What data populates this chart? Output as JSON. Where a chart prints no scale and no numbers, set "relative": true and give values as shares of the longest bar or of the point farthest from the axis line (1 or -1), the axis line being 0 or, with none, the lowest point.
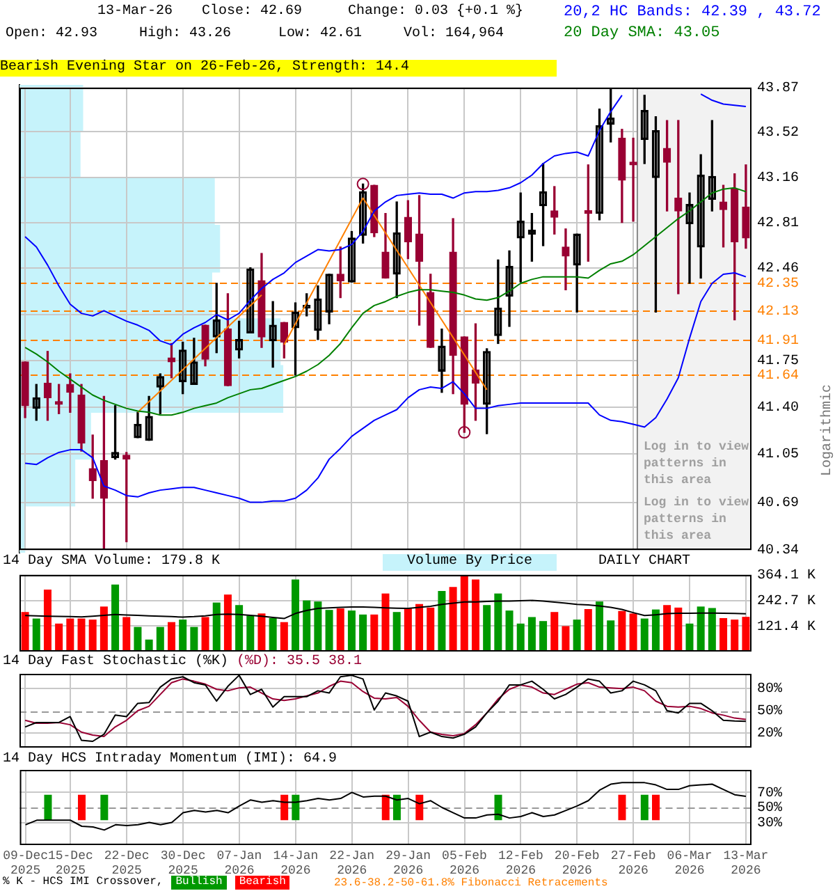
{
  "chart_data": [
    {
      "type": "candlestick",
      "title": "Bearish Evening Star on 26-Feb-26, Strength: 14.4",
      "ylabel": "Logarithmic",
      "annotations": [
        "13-Mar-26",
        "Close: 42.69",
        "Change: 0.03 {+0.1 %}",
        "Open: 42.93",
        "High: 43.26",
        "Low: 42.61",
        "Vol: 164,964",
        "Log in to view patterns in this area"
      ],
      "categories": [
        "09-Dec 2025",
        null,
        null,
        null,
        "15-Dec 2025",
        null,
        null,
        null,
        null,
        "22-Dec 2025",
        null,
        null,
        null,
        null,
        "30-Dec 2025",
        null,
        null,
        null,
        null,
        "07-Jan 2026",
        null,
        null,
        null,
        null,
        "14-Jan 2026",
        null,
        null,
        null,
        null,
        "22-Jan 2026",
        null,
        null,
        null,
        null,
        "29-Jan 2026",
        null,
        null,
        null,
        null,
        "05-Feb 2026",
        null,
        null,
        null,
        null,
        "12-Feb 2026",
        null,
        null,
        null,
        null,
        "20-Feb 2026",
        null,
        null,
        null,
        null,
        "27-Feb 2026",
        null,
        null,
        null,
        null,
        "06-Mar 2026",
        null,
        null,
        null,
        null,
        "13-Mar 2026"
      ],
      "colors": [
        "#990033",
        "#000000",
        "#990033",
        "#990033",
        "#990033",
        "#990033",
        "#990033",
        "#990033",
        "#000000",
        "#990033",
        "#000000",
        "#000000",
        "#000000",
        "#990033",
        "#000000",
        "#000000",
        "#990033",
        "#000000",
        "#990033",
        "#000000",
        "#000000",
        "#990033",
        "#000000",
        "#990033",
        "#000000",
        "#000000",
        "#000000",
        "#000000",
        "#990033",
        "#000000",
        "#000000",
        "#990033",
        "#990033",
        "#000000",
        "#990033",
        "#990033",
        "#990033",
        "#000000",
        "#990033",
        "#990033",
        "#990033",
        "#000000",
        "#000000",
        "#000000",
        "#000000",
        "#000000",
        "#000000",
        "#990033",
        "#990033",
        "#000000",
        "#990033",
        "#000000",
        "#000000",
        "#990033",
        "#990033",
        "#000000",
        "#000000",
        "#990033",
        "#990033",
        "#000000",
        "#000000",
        "#000000",
        "#990033",
        "#990033",
        "#990033"
      ],
      "ohlc": [
        [
          41.74,
          41.74,
          41.32,
          41.41
        ],
        [
          41.39,
          41.57,
          41.3,
          41.47
        ],
        [
          41.58,
          41.82,
          41.3,
          41.47
        ],
        [
          41.43,
          41.57,
          41.35,
          41.42
        ],
        [
          41.57,
          41.65,
          41.36,
          41.51
        ],
        [
          41.49,
          41.57,
          41.07,
          41.13
        ],
        [
          40.94,
          41.19,
          40.72,
          40.85
        ],
        [
          41.0,
          41.48,
          40.35,
          40.72
        ],
        [
          41.02,
          41.41,
          41.01,
          41.06
        ],
        [
          41.04,
          41.06,
          40.4,
          41.01
        ],
        [
          41.17,
          41.36,
          41.17,
          41.27
        ],
        [
          41.15,
          41.48,
          41.15,
          41.33
        ],
        [
          41.55,
          41.65,
          41.35,
          41.63
        ],
        [
          41.77,
          41.88,
          41.62,
          41.74
        ],
        [
          41.59,
          41.89,
          41.5,
          41.83
        ],
        [
          41.57,
          41.92,
          41.57,
          41.74
        ],
        [
          42.02,
          42.02,
          41.71,
          41.76
        ],
        [
          41.93,
          42.34,
          41.81,
          42.06
        ],
        [
          41.99,
          42.26,
          41.56,
          41.56
        ],
        [
          41.83,
          42.05,
          41.77,
          41.91
        ],
        [
          41.96,
          42.46,
          41.96,
          42.45
        ],
        [
          42.36,
          42.57,
          41.85,
          41.93
        ],
        [
          41.9,
          42.2,
          41.7,
          42.02
        ],
        [
          42.04,
          42.04,
          41.77,
          41.89
        ],
        [
          42.0,
          42.19,
          41.64,
          42.12
        ],
        [
          42.15,
          42.26,
          42.09,
          42.17
        ],
        [
          41.98,
          42.32,
          41.91,
          42.22
        ],
        [
          42.12,
          42.41,
          42.03,
          42.41
        ],
        [
          42.41,
          42.62,
          42.23,
          42.36
        ],
        [
          42.35,
          42.74,
          42.35,
          42.69
        ],
        [
          42.71,
          43.11,
          42.65,
          43.05
        ],
        [
          43.1,
          43.1,
          42.7,
          42.73
        ],
        [
          42.58,
          42.88,
          42.38,
          42.38
        ],
        [
          42.41,
          42.97,
          42.23,
          42.73
        ],
        [
          42.85,
          42.98,
          42.53,
          42.66
        ],
        [
          42.72,
          43.02,
          42.02,
          42.51
        ],
        [
          42.27,
          42.41,
          41.85,
          41.85
        ],
        [
          41.67,
          41.99,
          41.51,
          41.86
        ],
        [
          42.58,
          42.84,
          41.5,
          41.79
        ],
        [
          41.93,
          41.93,
          41.21,
          41.42
        ],
        [
          41.68,
          42.03,
          41.3,
          41.58
        ],
        [
          41.42,
          41.84,
          41.2,
          41.82
        ],
        [
          41.94,
          42.52,
          41.88,
          42.15
        ],
        [
          42.24,
          42.59,
          42.01,
          42.47
        ],
        [
          42.69,
          43.04,
          42.35,
          42.82
        ],
        [
          42.72,
          42.88,
          42.51,
          42.75
        ],
        [
          42.94,
          43.27,
          42.63,
          43.05
        ],
        [
          42.9,
          43.09,
          42.72,
          42.85
        ],
        [
          42.62,
          42.76,
          42.29,
          42.55
        ],
        [
          42.48,
          42.72,
          42.12,
          42.72
        ],
        [
          42.9,
          43.26,
          42.51,
          42.88
        ],
        [
          42.88,
          43.7,
          42.83,
          43.57
        ],
        [
          43.58,
          43.87,
          43.44,
          43.63
        ],
        [
          43.47,
          43.54,
          42.81,
          43.14
        ],
        [
          43.27,
          43.47,
          42.82,
          43.26
        ],
        [
          43.46,
          43.81,
          43.27,
          43.69
        ],
        [
          43.16,
          43.64,
          42.12,
          43.53
        ],
        [
          43.39,
          43.61,
          42.9,
          43.28
        ],
        [
          43.0,
          43.61,
          42.26,
          42.9
        ],
        [
          42.8,
          43.04,
          42.34,
          42.95
        ],
        [
          42.62,
          43.34,
          42.38,
          43.18
        ],
        [
          42.99,
          43.61,
          42.9,
          43.17
        ],
        [
          42.97,
          43.1,
          42.62,
          42.91
        ],
        [
          43.07,
          43.19,
          42.06,
          42.66
        ],
        [
          42.93,
          43.26,
          42.61,
          42.69
        ]
      ],
      "series": [
        {
          "type": "line",
          "name": "20,2 HC Bands: 42.39 , 43.72",
          "color": "#0000ff",
          "values": [
            42.7,
            42.62,
            42.48,
            42.32,
            42.18,
            42.11,
            42.09,
            42.13,
            42.09,
            42.05,
            42.02,
            41.98,
            41.9,
            41.87,
            41.95,
            42.0,
            42.04,
            42.1,
            42.06,
            42.11,
            42.21,
            42.3,
            42.37,
            42.42,
            42.5,
            42.55,
            42.6,
            42.59,
            42.6,
            42.64,
            42.74,
            42.9,
            42.97,
            43.02,
            43.03,
            43.04,
            43.03,
            43.03,
            43.0,
            43.04,
            43.05,
            43.05,
            43.06,
            43.08,
            43.12,
            43.18,
            43.27,
            43.33,
            43.35,
            43.36,
            43.33,
            43.53,
            43.68,
            43.81,
            null,
            null,
            null,
            null,
            null,
            null,
            43.82,
            43.77,
            43.74,
            43.73,
            43.72
          ]
        },
        {
          "type": "line",
          "color": "#0000ff",
          "values": [
            40.98,
            40.97,
            41.02,
            41.06,
            41.08,
            41.08,
            41.02,
            40.81,
            40.78,
            40.74,
            40.73,
            40.76,
            40.78,
            40.79,
            40.8,
            40.8,
            40.78,
            40.76,
            40.74,
            40.72,
            40.69,
            40.69,
            40.7,
            40.7,
            40.72,
            40.78,
            40.87,
            41.01,
            41.09,
            41.18,
            41.24,
            41.3,
            41.34,
            41.38,
            41.47,
            41.53,
            41.55,
            41.54,
            41.59,
            41.5,
            41.39,
            41.39,
            41.41,
            41.42,
            41.43,
            41.43,
            41.43,
            41.43,
            41.43,
            41.43,
            41.43,
            41.34,
            41.3,
            41.29,
            41.27,
            41.25,
            41.32,
            41.46,
            41.62,
            41.92,
            42.2,
            42.34,
            42.41,
            42.42,
            42.39
          ]
        },
        {
          "type": "line",
          "name": "20 Day SMA: 43.05",
          "color": "#008000",
          "values": [
            41.85,
            41.8,
            41.74,
            41.67,
            41.61,
            41.55,
            41.49,
            41.45,
            41.42,
            41.39,
            41.37,
            41.36,
            41.34,
            41.34,
            41.36,
            41.39,
            41.41,
            41.43,
            41.47,
            41.5,
            41.53,
            41.54,
            41.57,
            41.6,
            41.63,
            41.67,
            41.72,
            41.79,
            41.88,
            42.0,
            42.11,
            42.17,
            42.2,
            42.24,
            42.27,
            42.29,
            42.29,
            42.28,
            42.27,
            42.25,
            42.22,
            42.21,
            42.23,
            42.28,
            42.34,
            42.37,
            42.39,
            42.39,
            42.39,
            42.39,
            42.38,
            42.44,
            42.49,
            42.51,
            42.56,
            42.63,
            42.7,
            42.77,
            42.84,
            42.9,
            42.97,
            43.04,
            43.07,
            43.08,
            43.05
          ]
        },
        {
          "type": "line",
          "color": "#ff8000",
          "values": [
            null,
            null,
            null,
            null,
            null,
            null,
            null,
            null,
            null,
            null,
            41.36,
            null,
            null,
            null,
            null,
            null,
            null,
            null,
            null,
            null,
            null,
            42.25,
            null,
            null,
            null,
            null,
            null,
            null,
            null,
            null,
            null,
            null,
            null,
            null,
            null,
            null,
            null,
            null,
            null,
            null,
            null,
            null,
            null,
            null,
            null,
            null,
            null,
            null,
            null,
            null,
            null,
            null,
            null,
            null,
            null,
            null,
            null,
            null,
            null,
            null,
            null,
            null,
            null,
            null,
            null
          ]
        },
        {
          "type": "line",
          "color": "#ff8000",
          "values": [
            null,
            null,
            null,
            null,
            null,
            null,
            null,
            null,
            null,
            null,
            null,
            null,
            null,
            null,
            null,
            null,
            null,
            null,
            null,
            null,
            null,
            null,
            null,
            41.87,
            null,
            null,
            null,
            null,
            null,
            null,
            43.0,
            null,
            null,
            null,
            null,
            null,
            null,
            null,
            null,
            null,
            null,
            41.53,
            null,
            null,
            null,
            null,
            null,
            null,
            null,
            null,
            null,
            null,
            null,
            null,
            null,
            null,
            null,
            null,
            null,
            null,
            null,
            null,
            null,
            null,
            null
          ]
        },
        {
          "type": "scatter",
          "marker": "circle",
          "color": "#990033",
          "values": [
            null,
            null,
            null,
            null,
            null,
            null,
            null,
            null,
            null,
            null,
            null,
            null,
            null,
            null,
            null,
            null,
            null,
            null,
            null,
            null,
            null,
            null,
            null,
            null,
            null,
            null,
            null,
            null,
            null,
            null,
            43.11,
            null,
            null,
            null,
            null,
            null,
            null,
            null,
            null,
            41.21,
            null,
            null,
            null,
            null,
            null,
            null,
            null,
            null,
            null,
            null,
            null,
            null,
            null,
            null,
            null,
            null,
            null,
            null,
            null,
            null,
            null,
            null,
            null,
            null,
            null
          ]
        }
      ],
      "ref_lines": [
        {
          "axis": "y",
          "value": 42.35,
          "label": "42.35",
          "color": "#ff8000",
          "line_style": "dashed"
        },
        {
          "axis": "y",
          "value": 42.13,
          "label": "42.13",
          "color": "#ff8000",
          "line_style": "dashed"
        },
        {
          "axis": "y",
          "value": 41.91,
          "label": "41.91",
          "color": "#ff8000",
          "line_style": "dashed"
        },
        {
          "axis": "y",
          "value": 41.64,
          "label": "41.64",
          "color": "#ff8000",
          "line_style": "dashed"
        }
      ],
      "bands": [
        {
          "axis": "x",
          "from": "27-Feb 2026",
          "to": "13-Mar 2026",
          "label": "Log in to view patterns in this area",
          "color": "#f2f2f2"
        }
      ],
      "log": true,
      "ylim": [
        40.34,
        43.87
      ],
      "yticks": [
        40.34,
        40.69,
        41.05,
        {
          "value": 41.4,
          "label": "41.40"
        },
        41.75,
        {
          "value": 42.1,
          "label": null
        },
        42.46,
        42.81,
        43.16,
        43.52,
        43.87
      ],
      "grid": true,
      "legend": "top right",
      "tick_labels": "y"
    },
    {
      "type": "bar",
      "orientation": "horizontal",
      "relative": true,
      "color": "#c6f3fb",
      "categories": [
        null,
        null,
        null,
        null,
        null,
        null,
        null,
        null,
        null,
        null
      ],
      "values": [
        0.24,
        0.23,
        0.74,
        0.76,
        0.73,
        0.99,
        1,
        0.27,
        0.21,
        0.02
      ],
      "tick_labels": false
    },
    {
      "type": "bar",
      "title": "14 Day SMA Volume: 179.8 K",
      "annotations": [
        "Volume By Price",
        "DAILY CHART"
      ],
      "categories": [
        "09-Dec 2025",
        null,
        null,
        null,
        "15-Dec 2025",
        null,
        null,
        null,
        null,
        "22-Dec 2025",
        null,
        null,
        null,
        null,
        "30-Dec 2025",
        null,
        null,
        null,
        null,
        "07-Jan 2026",
        null,
        null,
        null,
        null,
        "14-Jan 2026",
        null,
        null,
        null,
        null,
        "22-Jan 2026",
        null,
        null,
        null,
        null,
        "29-Jan 2026",
        null,
        null,
        null,
        null,
        "05-Feb 2026",
        null,
        null,
        null,
        null,
        "12-Feb 2026",
        null,
        null,
        null,
        null,
        "20-Feb 2026",
        null,
        null,
        null,
        null,
        "27-Feb 2026",
        null,
        null,
        null,
        null,
        "06-Mar 2026",
        null,
        null,
        null,
        null,
        "13-Mar 2026"
      ],
      "series": [
        {
          "type": "bar",
          "colors": [
            "#ff0000",
            "#009900",
            "#ff0000",
            "#ff0000",
            "#ff0000",
            "#ff0000",
            "#ff0000",
            "#ff0000",
            "#009900",
            "#ff0000",
            "#009900",
            "#009900",
            "#009900",
            "#ff0000",
            "#009900",
            "#009900",
            "#ff0000",
            "#009900",
            "#ff0000",
            "#009900",
            "#009900",
            "#ff0000",
            "#009900",
            "#ff0000",
            "#009900",
            "#009900",
            "#009900",
            "#009900",
            "#ff0000",
            "#009900",
            "#009900",
            "#ff0000",
            "#ff0000",
            "#009900",
            "#ff0000",
            "#ff0000",
            "#ff0000",
            "#009900",
            "#ff0000",
            "#ff0000",
            "#ff0000",
            "#009900",
            "#009900",
            "#009900",
            "#009900",
            "#009900",
            "#009900",
            "#ff0000",
            "#ff0000",
            "#009900",
            "#ff0000",
            "#009900",
            "#009900",
            "#ff0000",
            "#ff0000",
            "#009900",
            "#009900",
            "#ff0000",
            "#ff0000",
            "#009900",
            "#009900",
            "#009900",
            "#ff0000",
            "#ff0000",
            "#ff0000"
          ],
          "values": [
            188,
            157,
            295,
            133,
            157,
            157,
            152,
            214,
            319,
            164,
            117,
            57,
            117,
            140,
            152,
            117,
            164,
            233,
            271,
            221,
            171,
            181,
            159,
            140,
            343,
            243,
            238,
            198,
            205,
            195,
            176,
            176,
            276,
            188,
            205,
            226,
            209,
            288,
            307,
            364,
            343,
            221,
            276,
            195,
            133,
            164,
            145,
            188,
            121,
            152,
            202,
            238,
            148,
            193,
            181,
            157,
            200,
            221,
            209,
            133,
            214,
            207,
            159,
            152,
            165
          ]
        },
        {
          "type": "line",
          "color": "#000000",
          "values": [
            171,
            170,
            168,
            167,
            166,
            165,
            168,
            172,
            176,
            174,
            172,
            170,
            168,
            166,
            164,
            166,
            170,
            176,
            178,
            176,
            172,
            168,
            162,
            157,
            181,
            195,
            205,
            208,
            210,
            212,
            212,
            210,
            208,
            206,
            205,
            210,
            215,
            224,
            230,
            236,
            236,
            238,
            240,
            240,
            242,
            243,
            240,
            235,
            230,
            224,
            222,
            217,
            210,
            200,
            185,
            171,
            175,
            180,
            182,
            182,
            183,
            183,
            182,
            181,
            179.8
          ]
        }
      ],
      "ylim": [
        0,
        364.1
      ],
      "yticks": [
        {
          "value": 121.4,
          "label": "121.4 K"
        },
        {
          "value": 242.7,
          "label": "242.7 K"
        },
        {
          "value": 364.1,
          "label": "364.1 K"
        }
      ],
      "grid": true,
      "tick_labels": "y"
    },
    {
      "type": "line",
      "title": "14 Day Fast Stochastic (%K)",
      "subtitle": "(%D): 35.5 38.1",
      "categories": [
        "09-Dec 2025",
        null,
        null,
        null,
        "15-Dec 2025",
        null,
        null,
        null,
        null,
        "22-Dec 2025",
        null,
        null,
        null,
        null,
        "30-Dec 2025",
        null,
        null,
        null,
        null,
        "07-Jan 2026",
        null,
        null,
        null,
        null,
        "14-Jan 2026",
        null,
        null,
        null,
        null,
        "22-Jan 2026",
        null,
        null,
        null,
        null,
        "29-Jan 2026",
        null,
        null,
        null,
        null,
        "05-Feb 2026",
        null,
        null,
        null,
        null,
        "12-Feb 2026",
        null,
        null,
        null,
        null,
        "20-Feb 2026",
        null,
        null,
        null,
        null,
        "27-Feb 2026",
        null,
        null,
        null,
        null,
        "06-Mar 2026",
        null,
        null,
        null,
        null,
        "13-Mar 2026"
      ],
      "series": [
        {
          "color": "#000000",
          "values": [
            28,
            34,
            34,
            34,
            42,
            10,
            8.5,
            18,
            44,
            42,
            60,
            61,
            82,
            93,
            96,
            88,
            85,
            63,
            83,
            98,
            72,
            79,
            55,
            69,
            69,
            69,
            77,
            74,
            96,
            98,
            93,
            51,
            74,
            70,
            63,
            15,
            21,
            15,
            13,
            18,
            28,
            47,
            63,
            85,
            85,
            90,
            79,
            66,
            72,
            82,
            93,
            90,
            74,
            77,
            90,
            85,
            77,
            50,
            47,
            60,
            60,
            50,
            37,
            36,
            35.5
          ]
        },
        {
          "color": "#990033",
          "values": [
            37,
            33,
            33,
            34,
            31,
            21,
            17,
            15,
            28,
            37,
            50,
            56,
            72,
            88,
            93,
            90,
            86,
            79,
            77,
            81,
            82,
            74,
            66,
            64,
            66,
            70,
            74,
            83,
            90,
            88,
            76,
            67,
            66,
            68,
            56,
            37,
            21,
            18,
            16,
            19,
            31,
            47,
            66,
            79,
            85,
            82,
            74,
            72,
            79,
            86,
            88,
            82,
            81,
            80,
            82,
            77,
            63,
            56,
            55,
            56,
            53,
            47,
            44,
            40,
            38.1
          ]
        }
      ],
      "ref_lines": [
        {
          "axis": "y",
          "value": 50,
          "color": "#999999",
          "line_style": "dashed"
        }
      ],
      "ylim": [
        0,
        100
      ],
      "yticks": [
        {
          "value": 20,
          "label": "20%"
        },
        {
          "value": 50,
          "label": "50%"
        },
        {
          "value": 80,
          "label": "80%"
        }
      ],
      "grid": true,
      "tick_labels": "y"
    },
    {
      "type": "line",
      "title": "14 Day HCS Intraday Momentum (IMI): 64.9",
      "annotations": [
        "23.6-38.2-50-61.8% Fibonacci Retracements"
      ],
      "categories": [
        "09-Dec 2025",
        null,
        null,
        null,
        "15-Dec 2025",
        null,
        null,
        null,
        null,
        "22-Dec 2025",
        null,
        null,
        null,
        null,
        "30-Dec 2025",
        null,
        null,
        null,
        null,
        "07-Jan 2026",
        null,
        null,
        null,
        null,
        "14-Jan 2026",
        null,
        null,
        null,
        null,
        "22-Jan 2026",
        null,
        null,
        null,
        null,
        "29-Jan 2026",
        null,
        null,
        null,
        null,
        "05-Feb 2026",
        null,
        null,
        null,
        null,
        "12-Feb 2026",
        null,
        null,
        null,
        null,
        "20-Feb 2026",
        null,
        null,
        null,
        null,
        "27-Feb 2026",
        null,
        null,
        null,
        null,
        "06-Mar 2026",
        null,
        null,
        null,
        null,
        "13-Mar 2026"
      ],
      "series": [
        {
          "type": "line",
          "color": "#000000",
          "values": [
            27,
            33,
            33,
            33,
            33,
            25,
            24,
            20,
            27,
            26,
            27,
            30,
            27,
            30,
            43,
            46,
            44,
            46,
            43,
            52,
            60,
            57,
            59,
            57,
            57,
            59,
            62,
            60,
            62,
            70,
            64,
            65,
            65,
            60,
            62,
            55,
            59,
            50,
            43,
            36,
            36,
            40,
            41,
            36,
            38,
            43,
            38,
            40,
            46,
            52,
            59,
            73,
            81,
            83,
            83,
            83,
            80,
            74,
            74,
            79,
            80,
            81,
            74,
            67,
            64.9
          ]
        },
        {
          "type": "bar",
          "name": "Bullish",
          "color": "#009900",
          "base": [
            null,
            null,
            33,
            null,
            null,
            null,
            null,
            33,
            null,
            null,
            null,
            null,
            null,
            null,
            null,
            null,
            null,
            null,
            null,
            null,
            null,
            null,
            null,
            null,
            33,
            null,
            null,
            null,
            null,
            null,
            null,
            null,
            null,
            33,
            null,
            null,
            null,
            null,
            null,
            null,
            null,
            null,
            33,
            null,
            null,
            null,
            null,
            null,
            null,
            null,
            null,
            null,
            null,
            null,
            null,
            33,
            null,
            null,
            null,
            null,
            null,
            null,
            null,
            null,
            null
          ],
          "values": [
            null,
            null,
            34,
            null,
            null,
            null,
            null,
            34,
            null,
            null,
            null,
            null,
            null,
            null,
            null,
            null,
            null,
            null,
            null,
            null,
            null,
            null,
            null,
            null,
            34,
            null,
            null,
            null,
            null,
            null,
            null,
            null,
            null,
            34,
            null,
            null,
            null,
            null,
            null,
            null,
            null,
            null,
            34,
            null,
            null,
            null,
            null,
            null,
            null,
            null,
            null,
            null,
            null,
            null,
            null,
            34,
            null,
            null,
            null,
            null,
            null,
            null,
            null,
            null,
            null
          ]
        },
        {
          "type": "bar",
          "name": "Bearish",
          "color": "#ff0000",
          "base": [
            null,
            null,
            null,
            null,
            null,
            33,
            null,
            null,
            null,
            null,
            null,
            null,
            null,
            null,
            null,
            null,
            null,
            null,
            null,
            null,
            null,
            null,
            null,
            33,
            null,
            null,
            null,
            null,
            null,
            null,
            null,
            null,
            33,
            null,
            null,
            33,
            null,
            null,
            null,
            null,
            null,
            null,
            null,
            null,
            null,
            null,
            null,
            null,
            null,
            null,
            null,
            null,
            null,
            33,
            null,
            null,
            33,
            null,
            null,
            null,
            null,
            null,
            null,
            null,
            null
          ],
          "values": [
            null,
            null,
            null,
            null,
            null,
            34,
            null,
            null,
            null,
            null,
            null,
            null,
            null,
            null,
            null,
            null,
            null,
            null,
            null,
            null,
            null,
            null,
            null,
            34,
            null,
            null,
            null,
            null,
            null,
            null,
            null,
            null,
            34,
            null,
            null,
            34,
            null,
            null,
            null,
            null,
            null,
            null,
            null,
            null,
            null,
            null,
            null,
            null,
            null,
            null,
            null,
            null,
            null,
            34,
            null,
            null,
            34,
            null,
            null,
            null,
            null,
            null,
            null,
            null,
            null
          ]
        }
      ],
      "ref_lines": [
        {
          "axis": "y",
          "value": 50,
          "color": "#999999",
          "line_style": "dashed"
        }
      ],
      "legend": "bottom",
      "legend_title": "% K - HCS IMI Crossover,",
      "ylim": [
        0,
        100
      ],
      "yticks": [
        {
          "value": 30,
          "label": "30%"
        },
        {
          "value": 50,
          "label": "50%"
        },
        {
          "value": 70,
          "label": "70%"
        }
      ],
      "grid": true
    }
  ]
}
